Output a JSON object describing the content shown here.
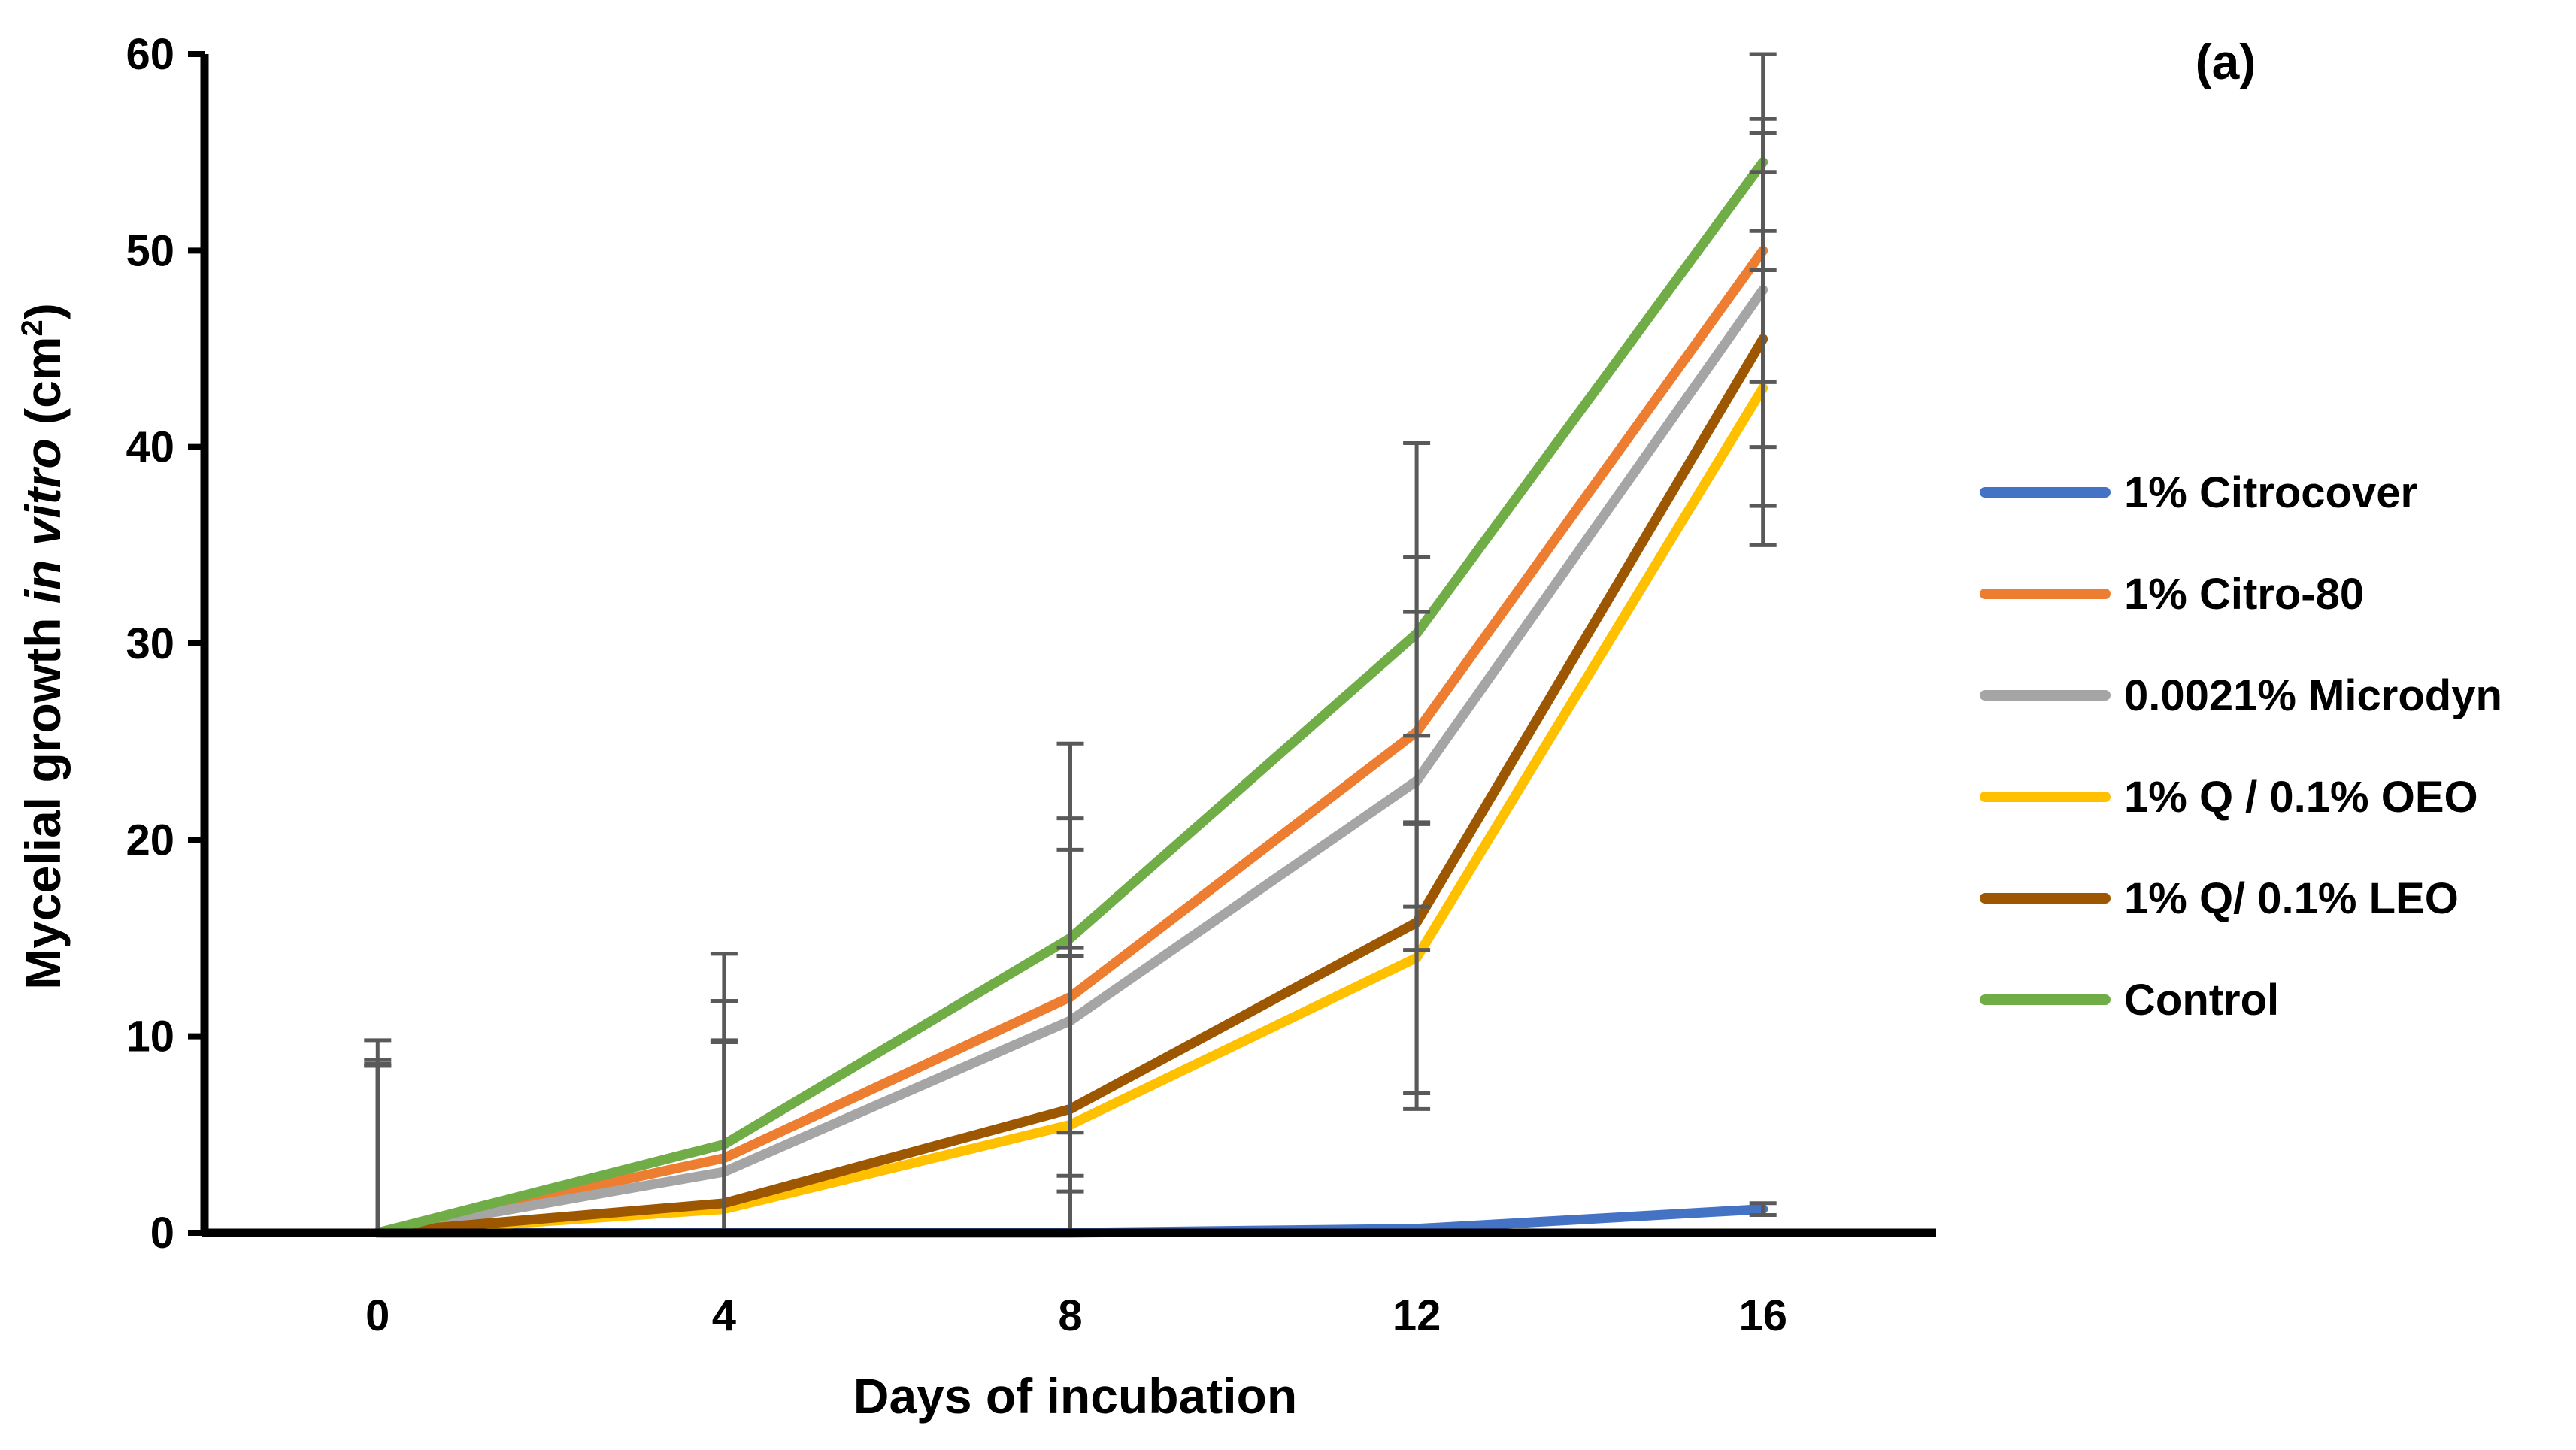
{
  "chart_data": {
    "type": "line",
    "panel_label": "(a)",
    "xlabel": "Days of incubation",
    "ylabel": {
      "prefix": "Mycelial growth ",
      "italic": "in vitro",
      "unit_open": " (cm",
      "superscript": "2",
      "unit_close": ")"
    },
    "x": [
      0,
      4,
      8,
      12,
      16
    ],
    "x_tick_labels": [
      "0",
      "4",
      "8",
      "12",
      "16"
    ],
    "xlim": [
      -2,
      18
    ],
    "ylim": [
      0,
      60
    ],
    "y_ticks": [
      0,
      10,
      20,
      30,
      40,
      50,
      60
    ],
    "y_tick_labels": [
      "0",
      "10",
      "20",
      "30",
      "40",
      "50",
      "60"
    ],
    "grid": false,
    "legend_position": "right",
    "series": [
      {
        "name": "1% Citrocover",
        "color": "#4472C4",
        "values": [
          0,
          0,
          0,
          0.2,
          1.2
        ],
        "errors": [
          0,
          0,
          0,
          0,
          0.3
        ]
      },
      {
        "name": "1% Citro-80",
        "color": "#ED7D31",
        "values": [
          0,
          3.8,
          12,
          25.5,
          50
        ],
        "errors": [
          8.6,
          8.0,
          9.1,
          8.9,
          6.7
        ]
      },
      {
        "name": "0.0021% Microdyn",
        "color": "#A5A5A5",
        "values": [
          0,
          3.1,
          10.8,
          23,
          48
        ],
        "errors": [
          8.8,
          8.7,
          8.7,
          8.6,
          8.0
        ]
      },
      {
        "name": "1% Q / 0.1% OEO",
        "color": "#FFC000",
        "values": [
          0,
          1.2,
          5.5,
          14,
          43
        ],
        "errors": [
          8.5,
          8.5,
          8.6,
          6.9,
          8.0
        ]
      },
      {
        "name": "1% Q/ 0.1% LEO",
        "color": "#9C5700",
        "values": [
          0,
          1.5,
          6.3,
          15.8,
          45.5
        ],
        "errors": [
          8.5,
          8.3,
          8.2,
          9.5,
          8.5
        ]
      },
      {
        "name": "Control",
        "color": "#70AD47",
        "values": [
          0,
          4.5,
          15,
          30.5,
          54.5
        ],
        "errors": [
          9.8,
          9.7,
          9.9,
          9.7,
          5.5
        ]
      }
    ],
    "error_bar_color": "#595959",
    "axis_color": "#000000"
  }
}
